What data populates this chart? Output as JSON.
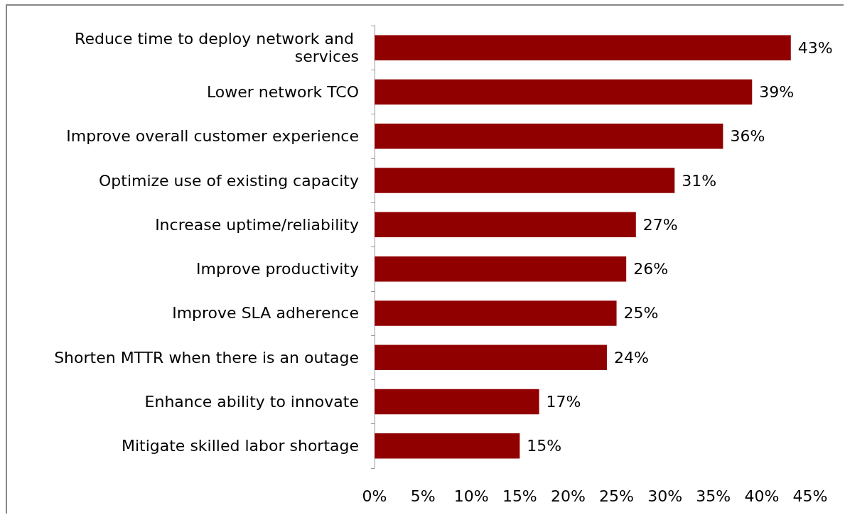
{
  "chart_data": {
    "type": "bar",
    "orientation": "horizontal",
    "categories": [
      "Reduce time to deploy network and services",
      "Lower network TCO",
      "Improve overall customer experience",
      "Optimize use of existing capacity",
      "Increase uptime/reliability",
      "Improve productivity",
      "Improve SLA adherence",
      "Shorten MTTR when there is an outage",
      "Enhance ability to innovate",
      "Mitigate skilled labor shortage"
    ],
    "values": [
      43,
      39,
      36,
      31,
      27,
      26,
      25,
      24,
      17,
      15
    ],
    "value_labels": [
      "43%",
      "39%",
      "36%",
      "31%",
      "27%",
      "26%",
      "25%",
      "24%",
      "17%",
      "15%"
    ],
    "color": "#900000",
    "xlim": [
      0,
      45
    ],
    "xticks": [
      {
        "value": 0,
        "label": "0%"
      },
      {
        "value": 5,
        "label": "5%"
      },
      {
        "value": 10,
        "label": "10%"
      },
      {
        "value": 15,
        "label": "15%"
      },
      {
        "value": 20,
        "label": "20%"
      },
      {
        "value": 25,
        "label": "25%"
      },
      {
        "value": 30,
        "label": "30%"
      },
      {
        "value": 35,
        "label": "35%"
      },
      {
        "value": 40,
        "label": "40%"
      },
      {
        "value": 45,
        "label": "45%"
      }
    ],
    "grid": false
  }
}
